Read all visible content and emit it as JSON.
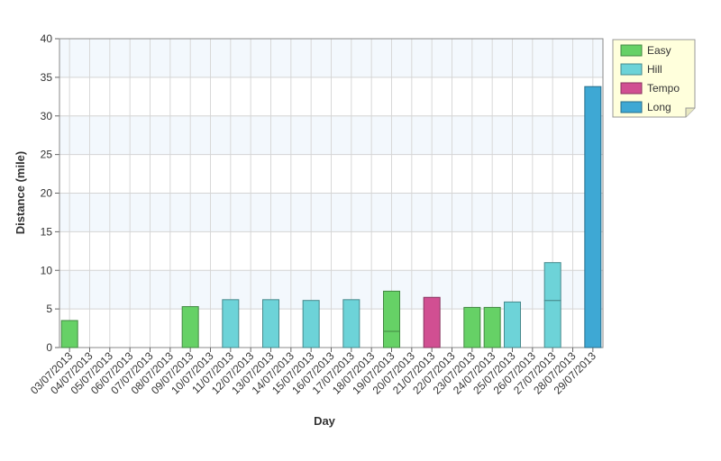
{
  "chart_data": {
    "type": "stacked-bar",
    "x_label": "Day",
    "y_label": "Distance (mile)",
    "categories": [
      "03/07/2013",
      "04/07/2013",
      "05/07/2013",
      "06/07/2013",
      "07/07/2013",
      "08/07/2013",
      "09/07/2013",
      "10/07/2013",
      "11/07/2013",
      "12/07/2013",
      "13/07/2013",
      "14/07/2013",
      "15/07/2013",
      "16/07/2013",
      "17/07/2013",
      "18/07/2013",
      "19/07/2013",
      "20/07/2013",
      "21/07/2013",
      "22/07/2013",
      "23/07/2013",
      "24/07/2013",
      "25/07/2013",
      "26/07/2013",
      "27/07/2013",
      "28/07/2013",
      "29/07/2013"
    ],
    "series": [
      {
        "name": "Easy",
        "color": "#66d166",
        "values": [
          3.5,
          null,
          null,
          null,
          null,
          null,
          5.3,
          null,
          null,
          null,
          null,
          null,
          null,
          null,
          null,
          null,
          2.1,
          null,
          null,
          null,
          5.2,
          5.2,
          null,
          null,
          null,
          null,
          null
        ]
      },
      {
        "name": "Hill",
        "color": "#6dd3d8",
        "values": [
          null,
          null,
          null,
          null,
          null,
          null,
          null,
          null,
          6.2,
          null,
          6.2,
          null,
          6.1,
          null,
          6.2,
          null,
          null,
          null,
          null,
          null,
          null,
          null,
          5.9,
          null,
          6.1,
          null,
          null
        ]
      },
      {
        "name": "Tempo",
        "color": "#d14f92",
        "values": [
          null,
          null,
          null,
          null,
          null,
          null,
          null,
          null,
          null,
          null,
          null,
          null,
          null,
          null,
          null,
          null,
          null,
          null,
          6.5,
          null,
          null,
          null,
          null,
          null,
          null,
          null,
          null
        ]
      },
      {
        "name": "Long",
        "color": "#3ea8d4",
        "values": [
          null,
          null,
          null,
          null,
          null,
          null,
          null,
          null,
          null,
          null,
          null,
          null,
          null,
          null,
          null,
          null,
          null,
          null,
          null,
          null,
          null,
          null,
          null,
          null,
          null,
          null,
          33.8
        ]
      },
      {
        "name": "Easy",
        "color": "#66d166",
        "values": [
          null,
          null,
          null,
          null,
          null,
          null,
          null,
          null,
          null,
          null,
          null,
          null,
          null,
          null,
          null,
          null,
          5.2,
          null,
          null,
          null,
          null,
          null,
          null,
          null,
          null,
          null,
          null
        ]
      },
      {
        "name": "Hill",
        "color": "#6dd3d8",
        "values": [
          null,
          null,
          null,
          null,
          null,
          null,
          null,
          null,
          null,
          null,
          null,
          null,
          null,
          null,
          null,
          null,
          null,
          null,
          null,
          null,
          null,
          null,
          null,
          null,
          4.9,
          null,
          null
        ]
      }
    ],
    "ylim": [
      0,
      40
    ],
    "yticks": [
      0,
      5,
      10,
      15,
      20,
      25,
      30,
      35,
      40
    ],
    "grid": true,
    "legend": "right"
  }
}
